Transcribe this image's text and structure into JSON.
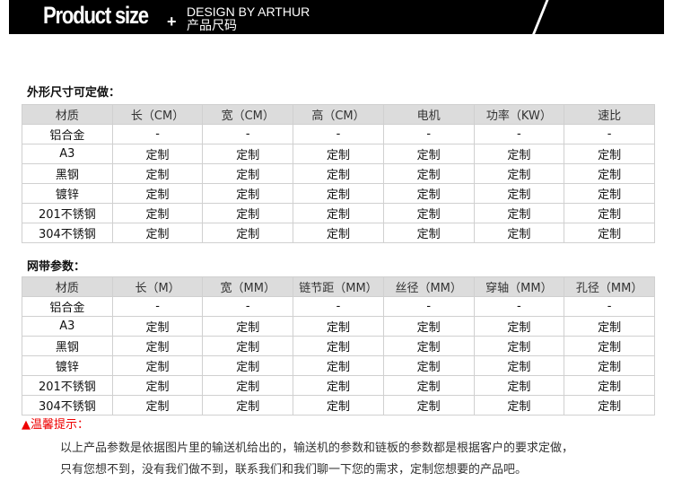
{
  "header": {
    "brand": "Product size",
    "plus": "+",
    "design": "DESIGN BY ARTHUR",
    "subtitle": "产品尺码"
  },
  "section1": {
    "title": "外形尺寸可定做：",
    "headers": [
      "材质",
      "长（CM）",
      "宽（CM）",
      "高（CM）",
      "电机",
      "功率（KW）",
      "速比"
    ],
    "rows": [
      [
        "铝合金",
        "-",
        "-",
        "-",
        "-",
        "-",
        "-"
      ],
      [
        "A3",
        "定制",
        "定制",
        "定制",
        "定制",
        "定制",
        "定制"
      ],
      [
        "黑钢",
        "定制",
        "定制",
        "定制",
        "定制",
        "定制",
        "定制"
      ],
      [
        "镀锌",
        "定制",
        "定制",
        "定制",
        "定制",
        "定制",
        "定制"
      ],
      [
        "201不锈钢",
        "定制",
        "定制",
        "定制",
        "定制",
        "定制",
        "定制"
      ],
      [
        "304不锈钢",
        "定制",
        "定制",
        "定制",
        "定制",
        "定制",
        "定制"
      ]
    ]
  },
  "section2": {
    "title": "网带参数：",
    "headers": [
      "材质",
      "长（M）",
      "宽（MM）",
      "链节距（MM）",
      "丝径（MM）",
      "穿轴（MM）",
      "孔径（MM）"
    ],
    "rows": [
      [
        "铝合金",
        "-",
        "-",
        "-",
        "-",
        "-",
        "-"
      ],
      [
        "A3",
        "定制",
        "定制",
        "定制",
        "定制",
        "定制",
        "定制"
      ],
      [
        "黑钢",
        "定制",
        "定制",
        "定制",
        "定制",
        "定制",
        "定制"
      ],
      [
        "镀锌",
        "定制",
        "定制",
        "定制",
        "定制",
        "定制",
        "定制"
      ],
      [
        "201不锈钢",
        "定制",
        "定制",
        "定制",
        "定制",
        "定制",
        "定制"
      ],
      [
        "304不锈钢",
        "定制",
        "定制",
        "定制",
        "定制",
        "定制",
        "定制"
      ]
    ]
  },
  "warning": "▲温馨提示：",
  "note": [
    "以上产品参数是依据图片里的输送机给出的，输送机的参数和链板的参数都是根据客户的要求定做，",
    "只有您想不到，没有我们做不到，联系我们和我们聊一下您的需求，定制您想要的产品吧。"
  ]
}
